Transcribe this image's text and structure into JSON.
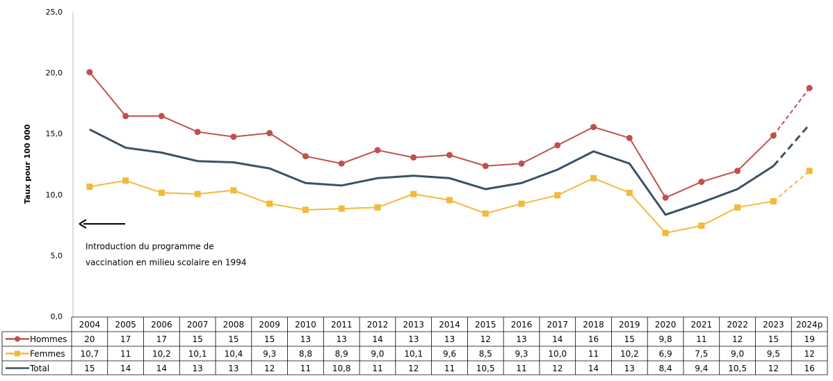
{
  "chart_data": {
    "type": "line",
    "y_label": "Taux pour 100 000",
    "annotation": [
      "Introduction du programme de",
      "vaccination en milieu scolaire en 1994"
    ],
    "categories": [
      "2004",
      "2005",
      "2006",
      "2007",
      "2008",
      "2009",
      "2010",
      "2011",
      "2012",
      "2013",
      "2014",
      "2015",
      "2016",
      "2017",
      "2018",
      "2019",
      "2020",
      "2021",
      "2022",
      "2023",
      "2024p"
    ],
    "ylim": [
      0,
      25
    ],
    "yticks": [
      {
        "value": 0,
        "label": "0,0"
      },
      {
        "value": 5,
        "label": "5,0"
      },
      {
        "value": 10,
        "label": "10,0"
      },
      {
        "value": 15,
        "label": "15,0"
      },
      {
        "value": 20,
        "label": "20,0"
      },
      {
        "value": 25,
        "label": "25,0"
      }
    ],
    "grid": false,
    "projection_dashed": true,
    "series": [
      {
        "name": "Hommes",
        "color": "#c0504d",
        "marker": "circle",
        "values": [
          20.1,
          16.5,
          16.5,
          15.2,
          14.8,
          15.1,
          13.2,
          12.6,
          13.7,
          13.1,
          13.3,
          12.4,
          12.6,
          14.1,
          15.6,
          14.7,
          9.8,
          11.1,
          12.0,
          14.9,
          18.8
        ],
        "value_labels": [
          "20",
          "17",
          "17",
          "15",
          "15",
          "15",
          "13",
          "13",
          "14",
          "13",
          "13",
          "12",
          "13",
          "14",
          "16",
          "15",
          "9,8",
          "11",
          "12",
          "15",
          "19"
        ]
      },
      {
        "name": "Femmes",
        "color": "#f2b93b",
        "marker": "square",
        "values": [
          10.7,
          11.2,
          10.2,
          10.1,
          10.4,
          9.3,
          8.8,
          8.9,
          9.0,
          10.1,
          9.6,
          8.5,
          9.3,
          10.0,
          11.4,
          10.2,
          6.9,
          7.5,
          9.0,
          9.5,
          12.0
        ],
        "value_labels": [
          "10,7",
          "11",
          "10,2",
          "10,1",
          "10,4",
          "9,3",
          "8,8",
          "8,9",
          "9,0",
          "10,1",
          "9,6",
          "8,5",
          "9,3",
          "10,0",
          "11",
          "10,2",
          "6,9",
          "7,5",
          "9,0",
          "9,5",
          "12"
        ]
      },
      {
        "name": "Total",
        "color": "#3b5167",
        "marker": "none",
        "values": [
          15.4,
          13.9,
          13.5,
          12.8,
          12.7,
          12.2,
          11.0,
          10.8,
          11.4,
          11.6,
          11.4,
          10.5,
          11.0,
          12.1,
          13.6,
          12.6,
          8.4,
          9.4,
          10.5,
          12.4,
          15.8
        ],
        "value_labels": [
          "15",
          "14",
          "14",
          "13",
          "13",
          "12",
          "11",
          "10,8",
          "11",
          "12",
          "11",
          "10,5",
          "11",
          "12",
          "14",
          "13",
          "8,4",
          "9,4",
          "10,5",
          "12",
          "16"
        ]
      }
    ]
  }
}
